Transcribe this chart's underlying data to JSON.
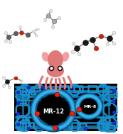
{
  "fig_width": 1.73,
  "fig_height": 1.89,
  "dpi": 100,
  "bg_color": "#ffffff",
  "zeolite_bg": "#000000",
  "zeolite_blue": "#1a8fcc",
  "zeolite_blue2": "#3ab0e8",
  "zeolite_blue_dark": "#0a5080",
  "mr12_label": "MR-12",
  "mr8_label": "MR-8",
  "red_dot_color": "#ee2200",
  "blue_dot_color": "#1133dd",
  "squid_body_color": "#e07878",
  "squid_light": "#f0a0a0",
  "mol_dark": "#1a1a1a",
  "mol_gray": "#606060",
  "mol_lgray": "#aaaaaa",
  "mol_white": "#e8e8e8",
  "mol_red": "#cc2200",
  "bond_color": "#888888"
}
